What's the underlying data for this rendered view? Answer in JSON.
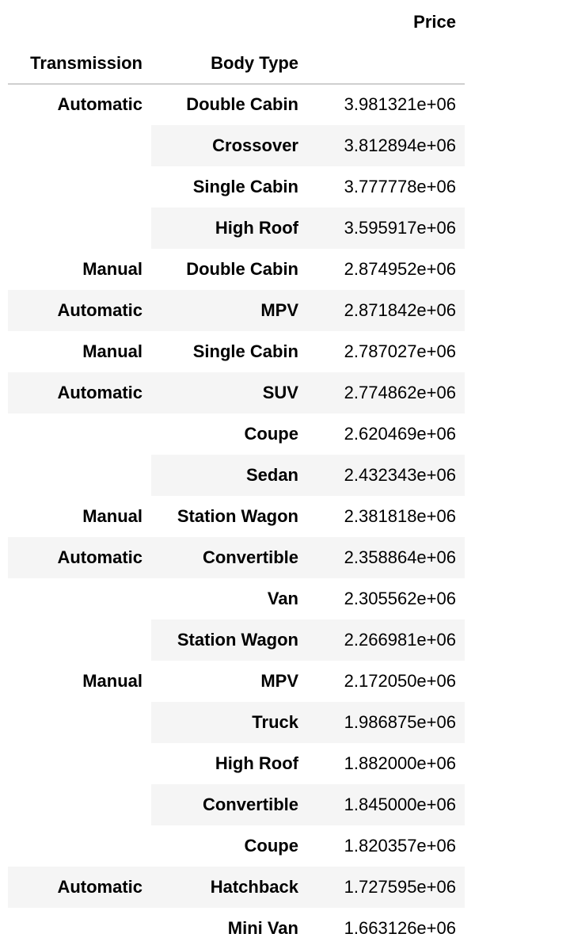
{
  "table": {
    "column_header": "Price",
    "index_names": [
      "Transmission",
      "Body Type"
    ],
    "rows": [
      {
        "level0": "Automatic",
        "level1": "Double Cabin",
        "price": "3.981321e+06"
      },
      {
        "level0": "",
        "level1": "Crossover",
        "price": "3.812894e+06"
      },
      {
        "level0": "",
        "level1": "Single Cabin",
        "price": "3.777778e+06"
      },
      {
        "level0": "",
        "level1": "High Roof",
        "price": "3.595917e+06"
      },
      {
        "level0": "Manual",
        "level1": "Double Cabin",
        "price": "2.874952e+06"
      },
      {
        "level0": "Automatic",
        "level1": "MPV",
        "price": "2.871842e+06"
      },
      {
        "level0": "Manual",
        "level1": "Single Cabin",
        "price": "2.787027e+06"
      },
      {
        "level0": "Automatic",
        "level1": "SUV",
        "price": "2.774862e+06"
      },
      {
        "level0": "",
        "level1": "Coupe",
        "price": "2.620469e+06"
      },
      {
        "level0": "",
        "level1": "Sedan",
        "price": "2.432343e+06"
      },
      {
        "level0": "Manual",
        "level1": "Station Wagon",
        "price": "2.381818e+06"
      },
      {
        "level0": "Automatic",
        "level1": "Convertible",
        "price": "2.358864e+06"
      },
      {
        "level0": "",
        "level1": "Van",
        "price": "2.305562e+06"
      },
      {
        "level0": "",
        "level1": "Station Wagon",
        "price": "2.266981e+06"
      },
      {
        "level0": "Manual",
        "level1": "MPV",
        "price": "2.172050e+06"
      },
      {
        "level0": "",
        "level1": "Truck",
        "price": "1.986875e+06"
      },
      {
        "level0": "",
        "level1": "High Roof",
        "price": "1.882000e+06"
      },
      {
        "level0": "",
        "level1": "Convertible",
        "price": "1.845000e+06"
      },
      {
        "level0": "",
        "level1": "Coupe",
        "price": "1.820357e+06"
      },
      {
        "level0": "Automatic",
        "level1": "Hatchback",
        "price": "1.727595e+06"
      },
      {
        "level0": "",
        "level1": "Mini Van",
        "price": "1.663126e+06"
      }
    ]
  }
}
